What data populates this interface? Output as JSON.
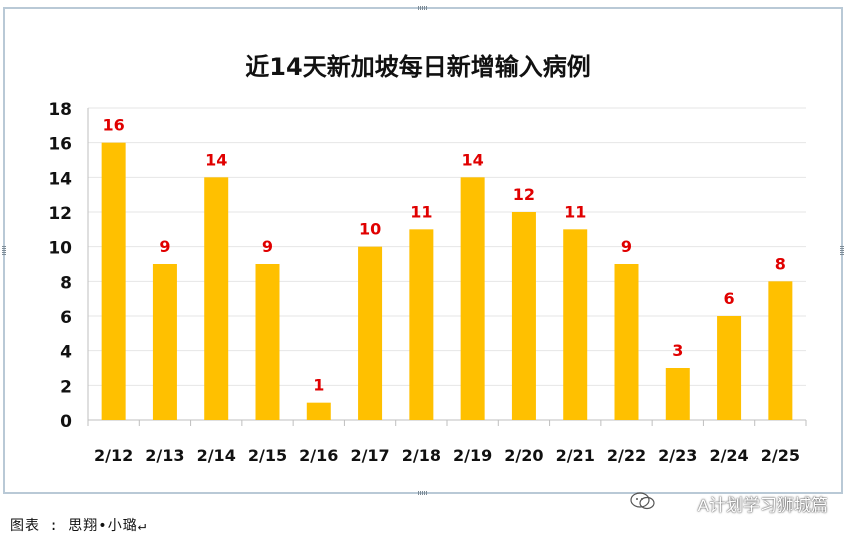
{
  "chart_data": {
    "type": "bar",
    "title": "近14天新加坡每日新增输入病例",
    "categories": [
      "2/12",
      "2/13",
      "2/14",
      "2/15",
      "2/16",
      "2/17",
      "2/18",
      "2/19",
      "2/20",
      "2/21",
      "2/22",
      "2/23",
      "2/24",
      "2/25"
    ],
    "values": [
      16,
      9,
      14,
      9,
      1,
      10,
      11,
      14,
      12,
      11,
      9,
      3,
      6,
      8
    ],
    "y_ticks": [
      "0",
      "2",
      "4",
      "6",
      "8",
      "10",
      "12",
      "14",
      "16",
      "18"
    ],
    "ylim": [
      0,
      18
    ],
    "xlabel": "",
    "ylabel": "",
    "grid": true,
    "bar_color": "#ffc000",
    "label_color": "#e00000"
  },
  "caption": "图表 : 思翔•小璐↵",
  "watermark": "A计划学习狮城篇"
}
